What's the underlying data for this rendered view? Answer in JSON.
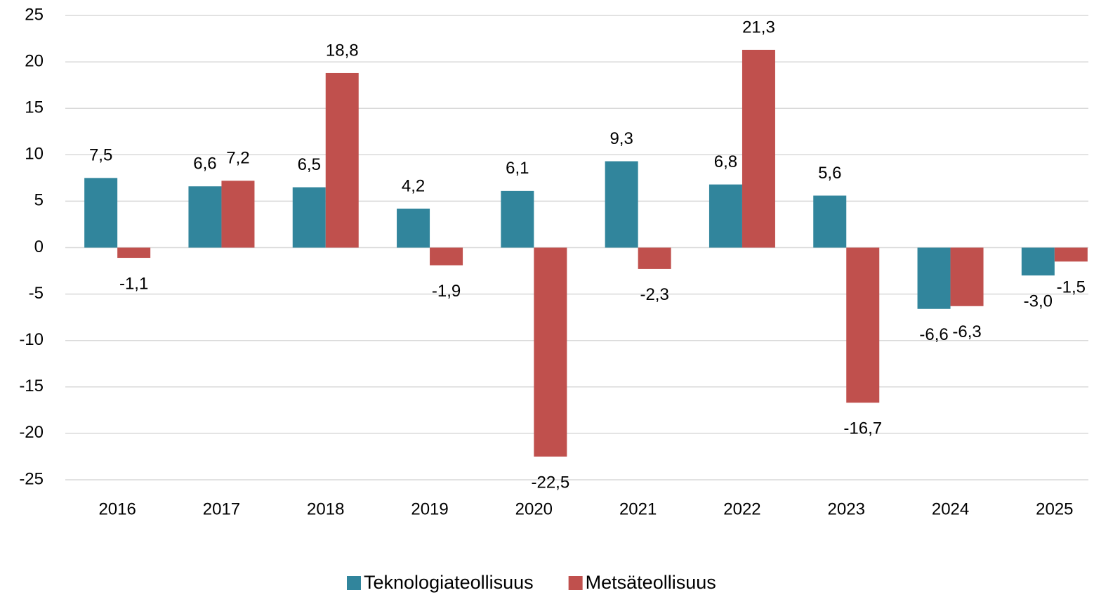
{
  "chart_data": {
    "type": "bar",
    "categories": [
      "2016",
      "2017",
      "2018",
      "2019",
      "2020",
      "2021",
      "2022",
      "2023",
      "2024",
      "2025"
    ],
    "series": [
      {
        "name": "Teknologiateollisuus",
        "color": "#31859c",
        "values": [
          7.5,
          6.6,
          6.5,
          4.2,
          6.1,
          9.3,
          6.8,
          5.6,
          -6.6,
          -3.0
        ],
        "value_labels": [
          "7,5",
          "6,6",
          "6,5",
          "4,2",
          "6,1",
          "9,3",
          "6,8",
          "5,6",
          "-6,6",
          "-3,0"
        ]
      },
      {
        "name": "Metsäteollisuus",
        "color": "#c0504d",
        "values": [
          -1.1,
          7.2,
          18.8,
          -1.9,
          -22.5,
          -2.3,
          21.3,
          -16.7,
          -6.3,
          -1.5
        ],
        "value_labels": [
          "-1,1",
          "7,2",
          "18,8",
          "-1,9",
          "-22,5",
          "-2,3",
          "21,3",
          "-16,7",
          "-6,3",
          "-1,5"
        ]
      }
    ],
    "ylim": [
      -25,
      25
    ],
    "yticks": [
      -25,
      -20,
      -15,
      -10,
      -5,
      0,
      5,
      10,
      15,
      20,
      25
    ],
    "grid": true,
    "legend": "bottom"
  }
}
